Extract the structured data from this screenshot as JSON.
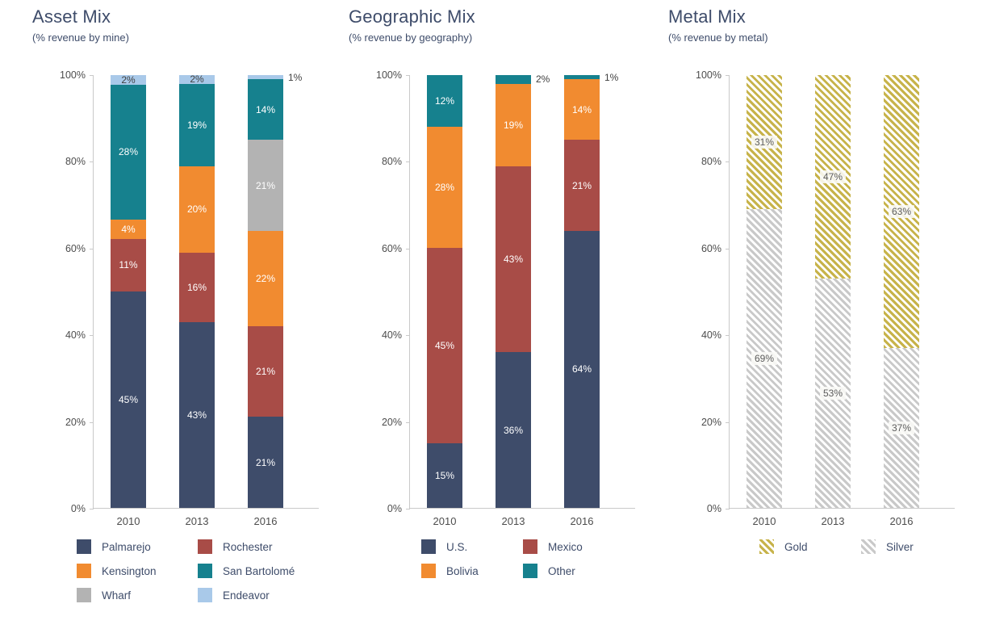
{
  "chart_data": [
    {
      "type": "bar",
      "variant": "stacked",
      "title": "Asset Mix",
      "subtitle": "(% revenue by mine)",
      "categories": [
        "2010",
        "2013",
        "2016"
      ],
      "series": [
        {
          "name": "Palmarejo",
          "color": "#3e4c6a",
          "pattern": "solid",
          "label_mode": "white",
          "values": [
            45,
            43,
            21
          ]
        },
        {
          "name": "Rochester",
          "color": "#a84c47",
          "pattern": "solid",
          "label_mode": "white",
          "values": [
            11,
            16,
            21
          ]
        },
        {
          "name": "Kensington",
          "color": "#f18b30",
          "pattern": "solid",
          "label_mode": "white",
          "values": [
            4,
            20,
            22
          ]
        },
        {
          "name": "Wharf",
          "color": "#b3b3b3",
          "pattern": "solid",
          "label_mode": "white",
          "values": [
            0,
            0,
            21
          ]
        },
        {
          "name": "San Bartolomé",
          "color": "#16818e",
          "pattern": "solid",
          "label_mode": "white",
          "values": [
            28,
            19,
            14
          ]
        },
        {
          "name": "Endeavor",
          "color": "#a9c9e9",
          "pattern": "solid",
          "label_mode": "dark",
          "values": [
            2,
            2,
            1
          ]
        }
      ],
      "legend": [
        "Palmarejo",
        "Rochester",
        "Kensington",
        "San Bartolomé",
        "Wharf",
        "Endeavor"
      ],
      "ylim": [
        0,
        100
      ],
      "yticks": [
        0,
        20,
        40,
        60,
        80,
        100
      ],
      "ytick_suffix": "%",
      "grid": false,
      "legend_position": "bottom"
    },
    {
      "type": "bar",
      "variant": "stacked",
      "title": "Geographic Mix",
      "subtitle": "(% revenue by geography)",
      "categories": [
        "2010",
        "2013",
        "2016"
      ],
      "series": [
        {
          "name": "U.S.",
          "color": "#3e4c6a",
          "pattern": "solid",
          "label_mode": "white",
          "values": [
            15,
            36,
            64
          ]
        },
        {
          "name": "Mexico",
          "color": "#a84c47",
          "pattern": "solid",
          "label_mode": "white",
          "values": [
            45,
            43,
            21
          ]
        },
        {
          "name": "Bolivia",
          "color": "#f18b30",
          "pattern": "solid",
          "label_mode": "white",
          "values": [
            28,
            19,
            14
          ]
        },
        {
          "name": "Other",
          "color": "#16818e",
          "pattern": "solid",
          "label_mode": "white",
          "values": [
            12,
            2,
            1
          ]
        }
      ],
      "legend": [
        "U.S.",
        "Mexico",
        "Bolivia",
        "Other"
      ],
      "ylim": [
        0,
        100
      ],
      "yticks": [
        0,
        20,
        40,
        60,
        80,
        100
      ],
      "ytick_suffix": "%",
      "grid": false,
      "legend_position": "bottom"
    },
    {
      "type": "bar",
      "variant": "stacked",
      "title": "Metal Mix",
      "subtitle": "(% revenue by metal)",
      "categories": [
        "2010",
        "2013",
        "2016"
      ],
      "series": [
        {
          "name": "Silver",
          "color": "#c9c9c9",
          "pattern": "hatch",
          "label_mode": "chip",
          "values": [
            69,
            53,
            37
          ]
        },
        {
          "name": "Gold",
          "color": "#c7b34a",
          "pattern": "hatch",
          "label_mode": "chip",
          "values": [
            31,
            47,
            63
          ]
        }
      ],
      "legend": [
        "Gold",
        "Silver"
      ],
      "ylim": [
        0,
        100
      ],
      "yticks": [
        0,
        20,
        40,
        60,
        80,
        100
      ],
      "ytick_suffix": "%",
      "grid": false,
      "legend_position": "bottom"
    }
  ]
}
